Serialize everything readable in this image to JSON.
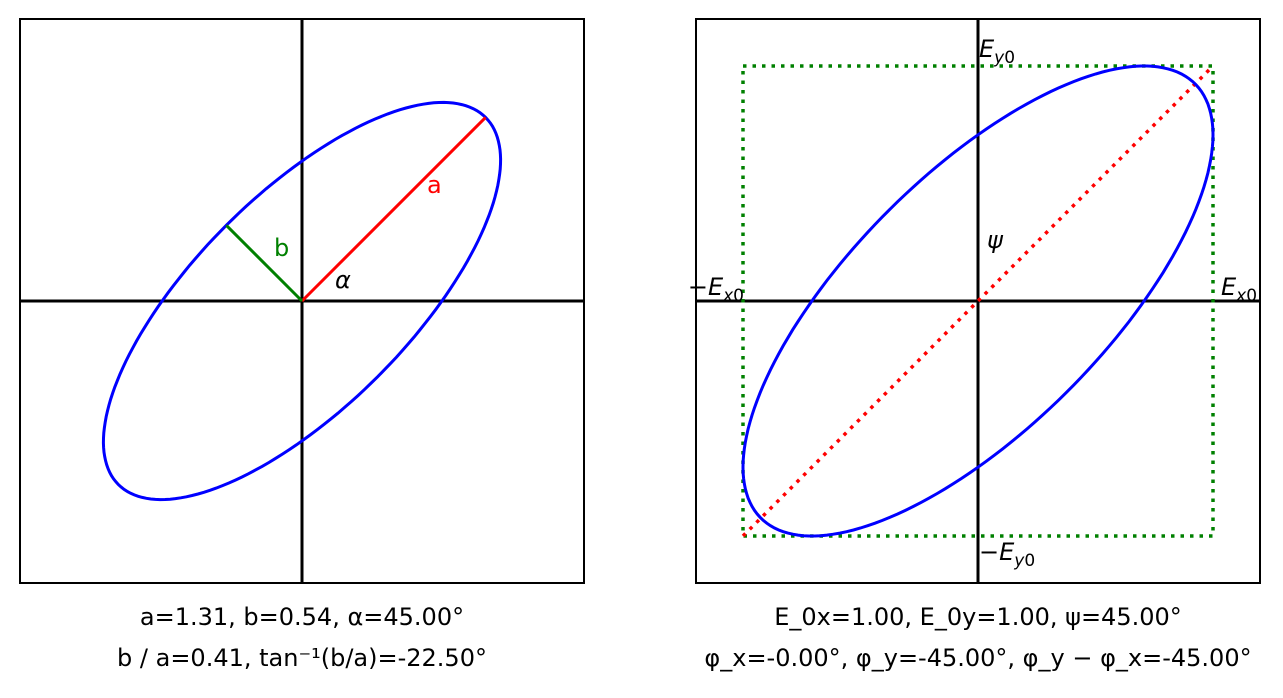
{
  "left_panel": {
    "label_a": "a",
    "label_b": "b",
    "label_alpha": "α",
    "caption_line1": "a=1.31, b=0.54, α=45.00°",
    "caption_line2": "b / a=0.41, tan⁻¹(b/a)=-22.50°",
    "params": {
      "a": 1.31,
      "b": 0.54,
      "alpha_deg": 45.0,
      "b_over_a": 0.41,
      "arctan_b_over_a_deg": -22.5
    }
  },
  "right_panel": {
    "label_psi": "ψ",
    "label_ey0": "E_y0",
    "label_neg_ey0": "−E_y0",
    "label_ex0": "E_x0",
    "label_neg_ex0": "−E_x0",
    "caption_line1": "E_0x=1.00, E_0y=1.00, ψ=45.00°",
    "caption_line2": "φ_x=-0.00°, φ_y=-45.00°, φ_y − φ_x=-45.00°",
    "params": {
      "E0x": 1.0,
      "E0y": 1.0,
      "psi_deg": 45.0,
      "phi_x_deg": -0.0,
      "phi_y_deg": -45.0,
      "delta_phi_deg": -45.0
    }
  },
  "colors": {
    "ellipse": "#0000ff",
    "major_axis": "#ff0000",
    "minor_axis": "#008000",
    "axes": "#000000",
    "bounding_box": "#008000",
    "diagonal": "#ff0000"
  }
}
